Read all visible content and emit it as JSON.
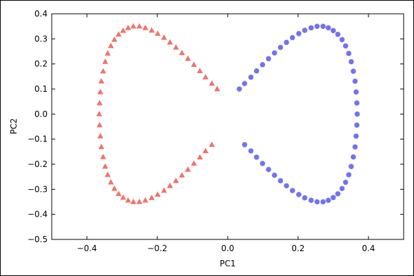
{
  "chart_data": {
    "type": "scatter",
    "title": "",
    "xlabel": "PC1",
    "ylabel": "PC2",
    "xlim": [
      -0.5,
      0.5
    ],
    "ylim": [
      -0.5,
      0.4
    ],
    "xticks": [
      -0.4,
      -0.2,
      0.0,
      0.2,
      0.4
    ],
    "xtick_labels": [
      "−0.4",
      "−0.2",
      "0.0",
      "0.2",
      "0.4"
    ],
    "yticks": [
      -0.5,
      -0.4,
      -0.3,
      -0.2,
      -0.1,
      0.0,
      0.1,
      0.2,
      0.3,
      0.4
    ],
    "ytick_labels": [
      "−0.5",
      "−0.4",
      "−0.3",
      "−0.2",
      "−0.1",
      "0.0",
      "0.1",
      "0.2",
      "0.3",
      "0.4"
    ],
    "grid": false,
    "series": [
      {
        "marker": "triangle",
        "color": "#e8524a",
        "points": [
          [
            -0.03,
            0.1
          ],
          [
            -0.045,
            0.122
          ],
          [
            -0.063,
            0.147
          ],
          [
            -0.079,
            0.172
          ],
          [
            -0.096,
            0.197
          ],
          [
            -0.113,
            0.221
          ],
          [
            -0.13,
            0.244
          ],
          [
            -0.147,
            0.266
          ],
          [
            -0.164,
            0.286
          ],
          [
            -0.181,
            0.305
          ],
          [
            -0.199,
            0.321
          ],
          [
            -0.216,
            0.334
          ],
          [
            -0.234,
            0.344
          ],
          [
            -0.251,
            0.35
          ],
          [
            -0.268,
            0.35
          ],
          [
            -0.283,
            0.344
          ],
          [
            -0.297,
            0.333
          ],
          [
            -0.31,
            0.318
          ],
          [
            -0.322,
            0.297
          ],
          [
            -0.332,
            0.272
          ],
          [
            -0.341,
            0.242
          ],
          [
            -0.348,
            0.209
          ],
          [
            -0.354,
            0.171
          ],
          [
            -0.359,
            0.131
          ],
          [
            -0.362,
            0.088
          ],
          [
            -0.364,
            0.044
          ],
          [
            -0.365,
            0.0
          ],
          [
            -0.364,
            -0.044
          ],
          [
            -0.362,
            -0.088
          ],
          [
            -0.359,
            -0.131
          ],
          [
            -0.354,
            -0.171
          ],
          [
            -0.348,
            -0.209
          ],
          [
            -0.341,
            -0.242
          ],
          [
            -0.332,
            -0.272
          ],
          [
            -0.322,
            -0.297
          ],
          [
            -0.31,
            -0.318
          ],
          [
            -0.297,
            -0.333
          ],
          [
            -0.283,
            -0.344
          ],
          [
            -0.268,
            -0.35
          ],
          [
            -0.251,
            -0.35
          ],
          [
            -0.234,
            -0.344
          ],
          [
            -0.216,
            -0.334
          ],
          [
            -0.199,
            -0.321
          ],
          [
            -0.181,
            -0.305
          ],
          [
            -0.164,
            -0.286
          ],
          [
            -0.147,
            -0.266
          ],
          [
            -0.13,
            -0.244
          ],
          [
            -0.113,
            -0.221
          ],
          [
            -0.096,
            -0.197
          ],
          [
            -0.079,
            -0.172
          ],
          [
            -0.063,
            -0.147
          ],
          [
            -0.045,
            -0.122
          ]
        ]
      },
      {
        "marker": "circle",
        "color": "#5050e8",
        "points": [
          [
            0.033,
            0.1
          ],
          [
            0.048,
            0.122
          ],
          [
            0.066,
            0.147
          ],
          [
            0.082,
            0.172
          ],
          [
            0.099,
            0.197
          ],
          [
            0.116,
            0.221
          ],
          [
            0.133,
            0.244
          ],
          [
            0.15,
            0.266
          ],
          [
            0.167,
            0.286
          ],
          [
            0.184,
            0.305
          ],
          [
            0.202,
            0.321
          ],
          [
            0.219,
            0.334
          ],
          [
            0.237,
            0.344
          ],
          [
            0.254,
            0.35
          ],
          [
            0.271,
            0.35
          ],
          [
            0.286,
            0.344
          ],
          [
            0.3,
            0.333
          ],
          [
            0.313,
            0.318
          ],
          [
            0.325,
            0.297
          ],
          [
            0.335,
            0.272
          ],
          [
            0.344,
            0.242
          ],
          [
            0.351,
            0.209
          ],
          [
            0.357,
            0.171
          ],
          [
            0.362,
            0.131
          ],
          [
            0.365,
            0.088
          ],
          [
            0.367,
            0.044
          ],
          [
            0.368,
            0.0
          ],
          [
            0.367,
            -0.044
          ],
          [
            0.365,
            -0.088
          ],
          [
            0.362,
            -0.131
          ],
          [
            0.357,
            -0.171
          ],
          [
            0.351,
            -0.209
          ],
          [
            0.344,
            -0.242
          ],
          [
            0.335,
            -0.272
          ],
          [
            0.325,
            -0.297
          ],
          [
            0.313,
            -0.318
          ],
          [
            0.3,
            -0.333
          ],
          [
            0.286,
            -0.344
          ],
          [
            0.271,
            -0.35
          ],
          [
            0.254,
            -0.35
          ],
          [
            0.237,
            -0.344
          ],
          [
            0.219,
            -0.334
          ],
          [
            0.202,
            -0.321
          ],
          [
            0.184,
            -0.305
          ],
          [
            0.167,
            -0.286
          ],
          [
            0.15,
            -0.266
          ],
          [
            0.133,
            -0.244
          ],
          [
            0.116,
            -0.221
          ],
          [
            0.099,
            -0.197
          ],
          [
            0.082,
            -0.172
          ],
          [
            0.066,
            -0.147
          ],
          [
            0.048,
            -0.122
          ]
        ]
      }
    ]
  }
}
